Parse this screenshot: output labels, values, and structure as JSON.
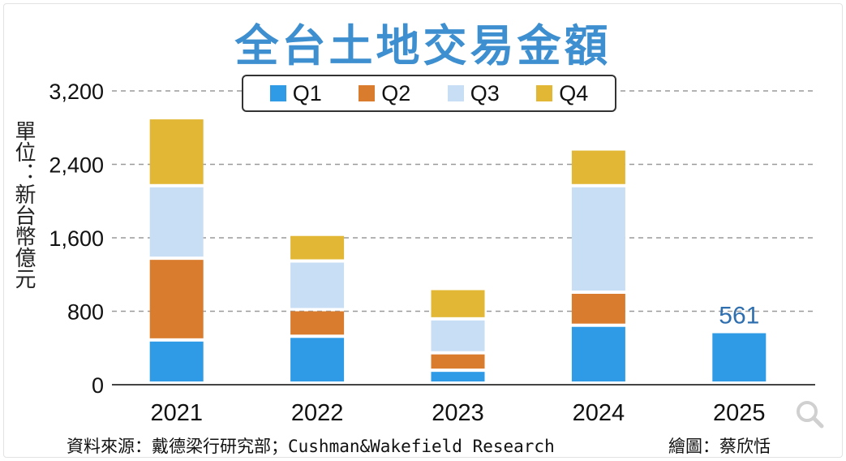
{
  "title": "全台土地交易金額",
  "unit_label": "單位：新台幣億元",
  "footer": {
    "source": "資料來源：戴德梁行研究部；Cushman&Wakefield Research",
    "credit": "繪圖：蔡欣恬"
  },
  "colors": {
    "title": "#3e8fd0",
    "Q1": "#2f9be6",
    "Q2": "#d97c2d",
    "Q3": "#c7def5",
    "Q4": "#e1b735",
    "label": "#2f6fb0"
  },
  "chart_data": {
    "type": "bar",
    "stacked": true,
    "title": "全台土地交易金額",
    "ylabel": "單位：新台幣億元",
    "xlabel": "",
    "ylim": [
      0,
      3200
    ],
    "yticks": [
      0,
      800,
      1600,
      2400,
      3200
    ],
    "ytick_labels": [
      "0",
      "800",
      "1,600",
      "2,400",
      "3,200"
    ],
    "grid": true,
    "legend_position": "top",
    "categories": [
      "2021",
      "2022",
      "2023",
      "2024",
      "2025"
    ],
    "series": [
      {
        "name": "Q1",
        "values": [
          470,
          510,
          140,
          630,
          561
        ]
      },
      {
        "name": "Q2",
        "values": [
          890,
          290,
          190,
          360,
          0
        ]
      },
      {
        "name": "Q3",
        "values": [
          790,
          530,
          370,
          1160,
          0
        ]
      },
      {
        "name": "Q4",
        "values": [
          740,
          290,
          330,
          400,
          0
        ]
      }
    ],
    "annotations": [
      {
        "category": "2025",
        "text": "561"
      }
    ]
  }
}
